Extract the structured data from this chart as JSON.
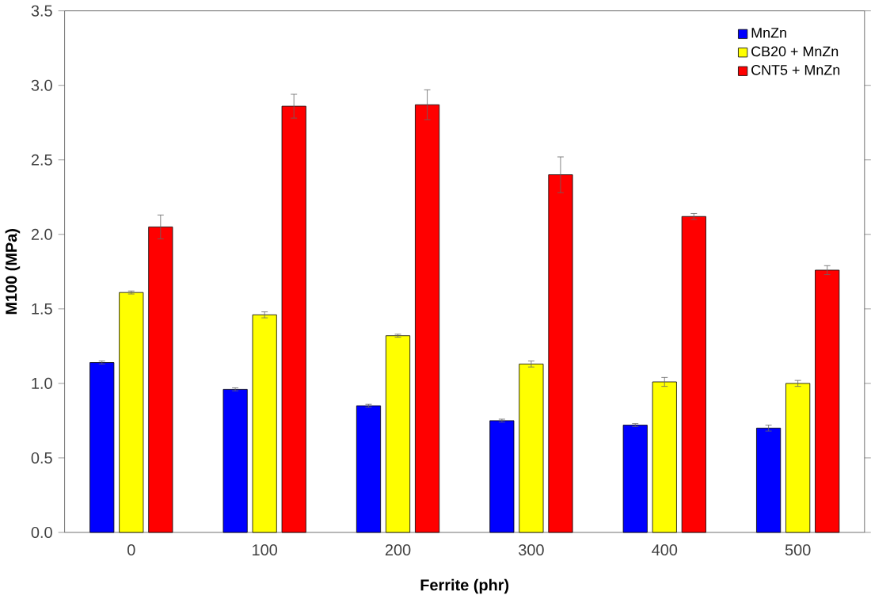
{
  "chart_data": {
    "type": "bar",
    "xlabel": "Ferrite (phr)",
    "ylabel": "M100 (MPa)",
    "categories": [
      "0",
      "100",
      "200",
      "300",
      "400",
      "500"
    ],
    "series": [
      {
        "name": "MnZn",
        "color": "#0000ff",
        "values": [
          1.14,
          0.96,
          0.85,
          0.75,
          0.72,
          0.7
        ],
        "errors": [
          0.01,
          0.01,
          0.01,
          0.01,
          0.01,
          0.02
        ]
      },
      {
        "name": "CB20 + MnZn",
        "color": "#ffff00",
        "values": [
          1.61,
          1.46,
          1.32,
          1.13,
          1.01,
          1.0
        ],
        "errors": [
          0.01,
          0.02,
          0.01,
          0.02,
          0.03,
          0.02
        ]
      },
      {
        "name": "CNT5 + MnZn",
        "color": "#ff0000",
        "values": [
          2.05,
          2.86,
          2.87,
          2.4,
          2.12,
          1.76
        ],
        "errors": [
          0.08,
          0.08,
          0.1,
          0.12,
          0.02,
          0.03
        ]
      }
    ],
    "ylim": [
      0,
      3.5
    ],
    "yticks": [
      {
        "value": 0,
        "label": "0.0"
      },
      {
        "value": 0.5,
        "label": "0.5"
      },
      {
        "value": 1,
        "label": "1.0"
      },
      {
        "value": 1.5,
        "label": "1.5"
      },
      {
        "value": 2,
        "label": "2.0"
      },
      {
        "value": 2.5,
        "label": "2.5"
      },
      {
        "value": 3,
        "label": "3.0"
      },
      {
        "value": 3.5,
        "label": "3.5"
      }
    ],
    "legend": "top right",
    "grid": false
  }
}
